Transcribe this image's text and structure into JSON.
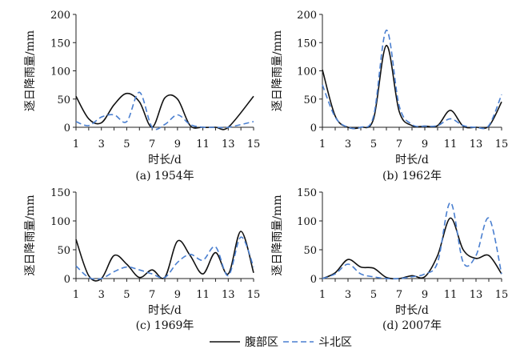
{
  "legend": [
    {
      "name": "腹部区",
      "color": "#111111",
      "dash": "solid"
    },
    {
      "name": "斗北区",
      "color": "#4a7fd0",
      "dash": "dashed"
    }
  ],
  "chart_data": [
    {
      "type": "line",
      "caption": "(a) 1954年",
      "xlabel": "时长/d",
      "ylabel": "逐日降雨量/mm",
      "xlim": [
        1,
        15
      ],
      "ylim": [
        0,
        200
      ],
      "x_ticks": [
        1,
        3,
        5,
        7,
        9,
        11,
        13,
        15
      ],
      "y_ticks": [
        0,
        50,
        100,
        150,
        200
      ],
      "x": [
        1,
        2,
        3,
        4,
        5,
        6,
        7,
        8,
        9,
        10,
        11,
        12,
        13,
        15
      ],
      "series": [
        {
          "name": "腹部区",
          "values": [
            55,
            15,
            8,
            40,
            60,
            45,
            0,
            52,
            50,
            3,
            0,
            0,
            0,
            55
          ]
        },
        {
          "name": "斗北区",
          "values": [
            10,
            3,
            18,
            22,
            10,
            62,
            0,
            5,
            22,
            5,
            0,
            0,
            0,
            10
          ]
        }
      ]
    },
    {
      "type": "line",
      "caption": "(b) 1962年",
      "xlabel": "时长/d",
      "ylabel": "逐日降雨量/mm",
      "xlim": [
        1,
        15
      ],
      "ylim": [
        0,
        200
      ],
      "x_ticks": [
        1,
        3,
        5,
        7,
        9,
        11,
        13,
        15
      ],
      "y_ticks": [
        0,
        50,
        100,
        150,
        200
      ],
      "x": [
        1,
        2,
        3,
        4,
        5,
        6,
        7,
        8,
        9,
        10,
        11,
        12,
        13,
        14,
        15
      ],
      "series": [
        {
          "name": "腹部区",
          "values": [
            102,
            20,
            0,
            0,
            15,
            145,
            28,
            3,
            2,
            3,
            30,
            2,
            0,
            2,
            45
          ]
        },
        {
          "name": "斗北区",
          "values": [
            75,
            18,
            0,
            0,
            20,
            172,
            38,
            5,
            2,
            3,
            15,
            3,
            0,
            3,
            58
          ]
        }
      ]
    },
    {
      "type": "line",
      "caption": "(c) 1969年",
      "xlabel": "时长/d",
      "ylabel": "逐日降雨量/mm",
      "xlim": [
        1,
        15
      ],
      "ylim": [
        0,
        150
      ],
      "x_ticks": [
        1,
        3,
        5,
        7,
        9,
        11,
        13,
        15
      ],
      "y_ticks": [
        0,
        50,
        100,
        150
      ],
      "x": [
        1,
        2,
        3,
        4,
        5,
        6,
        7,
        8,
        9,
        10,
        11,
        12,
        13,
        14,
        15
      ],
      "series": [
        {
          "name": "腹部区",
          "values": [
            68,
            5,
            0,
            40,
            25,
            2,
            15,
            2,
            65,
            40,
            8,
            45,
            8,
            82,
            10
          ]
        },
        {
          "name": "斗北区",
          "values": [
            22,
            2,
            0,
            12,
            20,
            15,
            8,
            2,
            28,
            42,
            32,
            55,
            5,
            72,
            20
          ]
        }
      ]
    },
    {
      "type": "line",
      "caption": "(d) 2007年",
      "xlabel": "时长/d",
      "ylabel": "逐日降雨量/mm",
      "xlim": [
        1,
        15
      ],
      "ylim": [
        0,
        150
      ],
      "x_ticks": [
        1,
        3,
        5,
        7,
        9,
        11,
        13,
        15
      ],
      "y_ticks": [
        0,
        50,
        100,
        150
      ],
      "x": [
        1,
        2,
        3,
        4,
        5,
        6,
        7,
        8,
        9,
        10,
        11,
        12,
        13,
        14,
        15
      ],
      "series": [
        {
          "name": "腹部区",
          "values": [
            0,
            10,
            33,
            20,
            18,
            2,
            0,
            5,
            3,
            40,
            105,
            50,
            35,
            40,
            8
          ]
        },
        {
          "name": "斗北区",
          "values": [
            0,
            8,
            25,
            8,
            3,
            0,
            0,
            3,
            8,
            28,
            132,
            28,
            40,
            105,
            8
          ]
        }
      ]
    }
  ]
}
